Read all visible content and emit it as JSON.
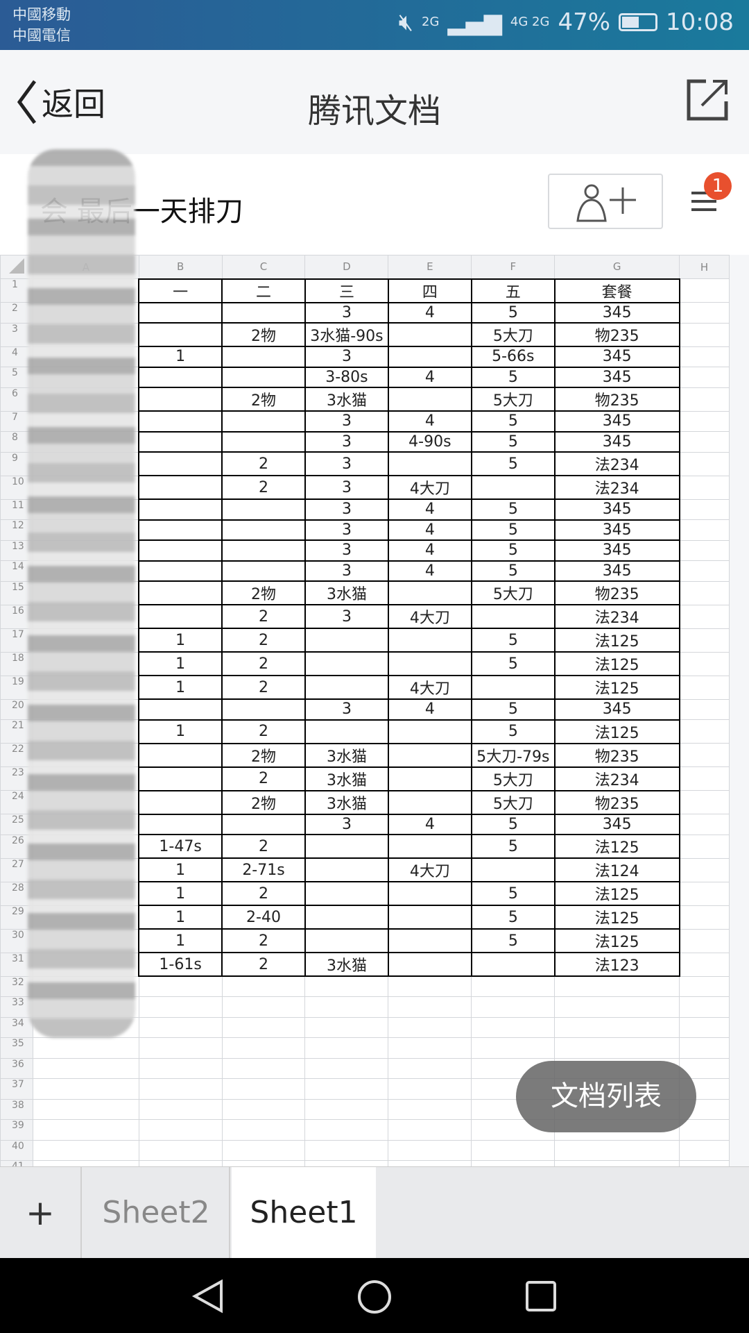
{
  "status_bar": {
    "carrier1": "中國移動",
    "carrier2": "中國電信",
    "net1": "2G",
    "net2": "4G 2G",
    "battery": "47%",
    "battery_level": 0.47,
    "time": "10:08"
  },
  "nav": {
    "back_label": "返回",
    "title": "腾讯文档"
  },
  "doc": {
    "title": "会  最后一天排刀",
    "notification_count": "1"
  },
  "sheet": {
    "columns": [
      "A",
      "B",
      "C",
      "D",
      "E",
      "F",
      "G",
      "H"
    ],
    "row_count": 44,
    "rows": [
      [
        "一",
        "二",
        "三",
        "四",
        "五",
        "套餐"
      ],
      [
        "",
        "",
        "3",
        "4",
        "5",
        "345"
      ],
      [
        "",
        "2物",
        "3水猫-90s",
        "",
        "5大刀",
        "物235"
      ],
      [
        "1",
        "",
        "3",
        "",
        "5-66s",
        "345"
      ],
      [
        "",
        "",
        "3-80s",
        "4",
        "5",
        "345"
      ],
      [
        "",
        "2物",
        "3水猫",
        "",
        "5大刀",
        "物235"
      ],
      [
        "",
        "",
        "3",
        "4",
        "5",
        "345"
      ],
      [
        "",
        "",
        "3",
        "4-90s",
        "5",
        "345"
      ],
      [
        "",
        "2",
        "3",
        "",
        "5",
        "法234"
      ],
      [
        "",
        "2",
        "3",
        "4大刀",
        "",
        "法234"
      ],
      [
        "",
        "",
        "3",
        "4",
        "5",
        "345"
      ],
      [
        "",
        "",
        "3",
        "4",
        "5",
        "345"
      ],
      [
        "",
        "",
        "3",
        "4",
        "5",
        "345"
      ],
      [
        "",
        "",
        "3",
        "4",
        "5",
        "345"
      ],
      [
        "",
        "2物",
        "3水猫",
        "",
        "5大刀",
        "物235"
      ],
      [
        "",
        "2",
        "3",
        "4大刀",
        "",
        "法234"
      ],
      [
        "1",
        "2",
        "",
        "",
        "5",
        "法125"
      ],
      [
        "1",
        "2",
        "",
        "",
        "5",
        "法125"
      ],
      [
        "1",
        "2",
        "",
        "4大刀",
        "",
        "法125"
      ],
      [
        "",
        "",
        "3",
        "4",
        "5",
        "345"
      ],
      [
        "1",
        "2",
        "",
        "",
        "5",
        "法125"
      ],
      [
        "",
        "2物",
        "3水猫",
        "",
        "5大刀-79s",
        "物235"
      ],
      [
        "",
        "2",
        "3水猫",
        "",
        "5大刀",
        "法234"
      ],
      [
        "",
        "2物",
        "3水猫",
        "",
        "5大刀",
        "物235"
      ],
      [
        "",
        "",
        "3",
        "4",
        "5",
        "345"
      ],
      [
        "1-47s",
        "2",
        "",
        "",
        "5",
        "法125"
      ],
      [
        "1",
        "2-71s",
        "",
        "4大刀",
        "",
        "法124"
      ],
      [
        "1",
        "2",
        "",
        "",
        "5",
        "法125"
      ],
      [
        "1",
        "2-40",
        "",
        "",
        "5",
        "法125"
      ],
      [
        "1",
        "2",
        "",
        "",
        "5",
        "法125"
      ],
      [
        "1-61s",
        "2",
        "3水猫",
        "",
        "",
        "法123"
      ]
    ]
  },
  "fab": {
    "label": "文档列表"
  },
  "tabs": {
    "add": "+",
    "items": [
      {
        "label": "Sheet2"
      },
      {
        "label": "Sheet1",
        "active": true
      }
    ]
  },
  "colors": {
    "accent_badge": "#e8502e",
    "status_bar": "#2b5b95"
  }
}
